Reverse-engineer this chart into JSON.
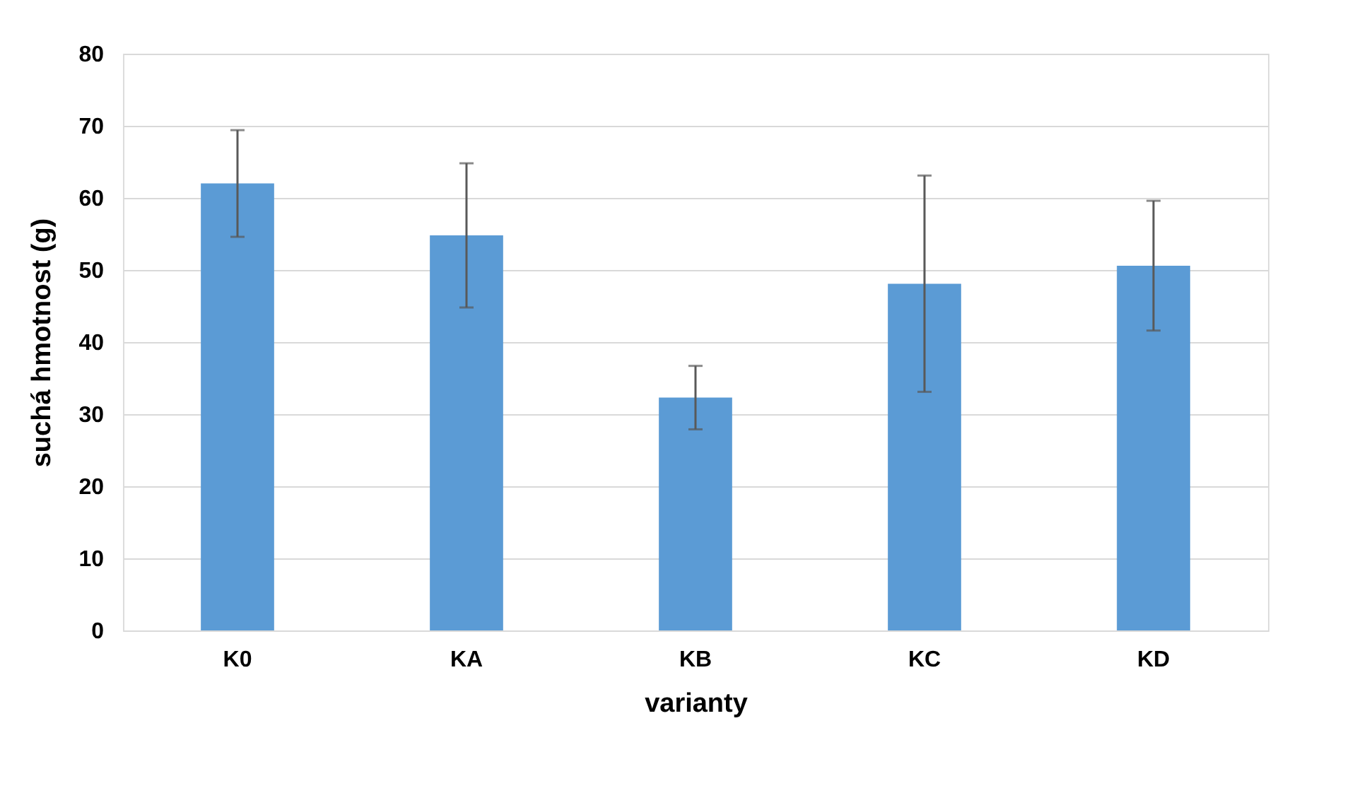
{
  "chart_data": {
    "type": "bar",
    "xlabel": "varianty",
    "ylabel": "suchá hmotnost (g)",
    "categories": [
      "K0",
      "KA",
      "KB",
      "KC",
      "KD"
    ],
    "values": [
      62,
      54.8,
      32.3,
      48.1,
      50.6
    ],
    "errors": [
      7.4,
      10,
      4.4,
      15,
      9
    ],
    "color": "#5b9bd5",
    "ylim": [
      0,
      80
    ],
    "yticks": [
      0,
      10,
      20,
      30,
      40,
      50,
      60,
      70,
      80
    ],
    "grid": "y"
  }
}
